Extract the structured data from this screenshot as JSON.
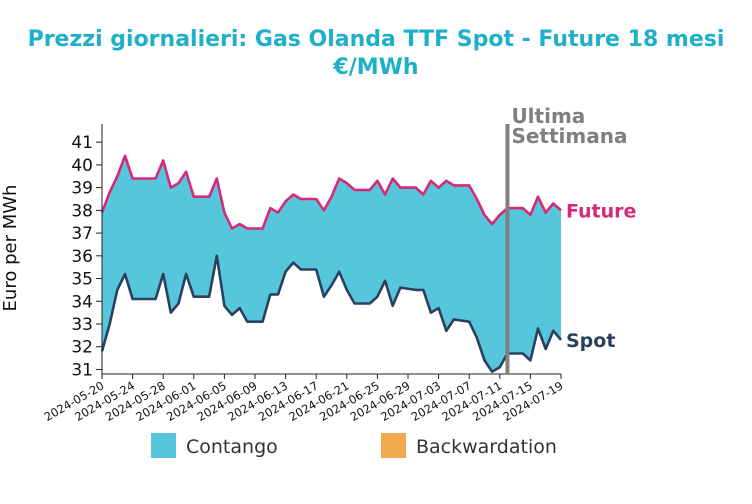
{
  "chart_data": {
    "type": "area",
    "title": "Prezzi giornalieri: Gas Olanda TTF Spot - Future 18 mesi",
    "subtitle": "€/MWh",
    "xlabel": "",
    "ylabel": "Euro per MWh",
    "ylim": [
      30.8,
      41.8
    ],
    "yticks": [
      31,
      32,
      33,
      34,
      35,
      36,
      37,
      38,
      39,
      40,
      41
    ],
    "xticks": [
      "2024-05-20",
      "2024-05-24",
      "2024-05-28",
      "2024-06-01",
      "2024-06-05",
      "2024-06-09",
      "2024-06-13",
      "2024-06-17",
      "2024-06-21",
      "2024-06-25",
      "2024-06-29",
      "2024-07-03",
      "2024-07-07",
      "2024-07-11",
      "2024-07-15",
      "2024-07-19"
    ],
    "grid": false,
    "series": [
      {
        "name": "Future",
        "color": "#d42a78",
        "values": [
          [
            "2024-05-20",
            37.9
          ],
          [
            "2024-05-21",
            38.8
          ],
          [
            "2024-05-22",
            39.5
          ],
          [
            "2024-05-23",
            40.4
          ],
          [
            "2024-05-24",
            39.4
          ],
          [
            "2024-05-27",
            39.4
          ],
          [
            "2024-05-28",
            40.2
          ],
          [
            "2024-05-29",
            39.0
          ],
          [
            "2024-05-30",
            39.2
          ],
          [
            "2024-05-31",
            39.7
          ],
          [
            "2024-06-01",
            38.6
          ],
          [
            "2024-06-03",
            38.6
          ],
          [
            "2024-06-04",
            39.4
          ],
          [
            "2024-06-05",
            37.9
          ],
          [
            "2024-06-06",
            37.2
          ],
          [
            "2024-06-07",
            37.4
          ],
          [
            "2024-06-08",
            37.2
          ],
          [
            "2024-06-10",
            37.2
          ],
          [
            "2024-06-11",
            38.1
          ],
          [
            "2024-06-12",
            37.9
          ],
          [
            "2024-06-13",
            38.4
          ],
          [
            "2024-06-14",
            38.7
          ],
          [
            "2024-06-15",
            38.5
          ],
          [
            "2024-06-17",
            38.5
          ],
          [
            "2024-06-18",
            38.0
          ],
          [
            "2024-06-19",
            38.6
          ],
          [
            "2024-06-20",
            39.4
          ],
          [
            "2024-06-21",
            39.2
          ],
          [
            "2024-06-22",
            38.9
          ],
          [
            "2024-06-24",
            38.9
          ],
          [
            "2024-06-25",
            39.3
          ],
          [
            "2024-06-26",
            38.7
          ],
          [
            "2024-06-27",
            39.4
          ],
          [
            "2024-06-28",
            39.0
          ],
          [
            "2024-06-30",
            39.0
          ],
          [
            "2024-07-01",
            38.7
          ],
          [
            "2024-07-02",
            39.3
          ],
          [
            "2024-07-03",
            39.0
          ],
          [
            "2024-07-04",
            39.3
          ],
          [
            "2024-07-05",
            39.1
          ],
          [
            "2024-07-07",
            39.1
          ],
          [
            "2024-07-08",
            38.5
          ],
          [
            "2024-07-09",
            37.8
          ],
          [
            "2024-07-10",
            37.4
          ],
          [
            "2024-07-11",
            37.8
          ],
          [
            "2024-07-12",
            38.1
          ],
          [
            "2024-07-14",
            38.1
          ],
          [
            "2024-07-15",
            37.8
          ],
          [
            "2024-07-16",
            38.6
          ],
          [
            "2024-07-17",
            37.9
          ],
          [
            "2024-07-18",
            38.3
          ],
          [
            "2024-07-19",
            38.0
          ]
        ]
      },
      {
        "name": "Spot",
        "color": "#2b3f5e",
        "values": [
          [
            "2024-05-20",
            31.8
          ],
          [
            "2024-05-21",
            33.0
          ],
          [
            "2024-05-22",
            34.5
          ],
          [
            "2024-05-23",
            35.2
          ],
          [
            "2024-05-24",
            34.1
          ],
          [
            "2024-05-27",
            34.1
          ],
          [
            "2024-05-28",
            35.2
          ],
          [
            "2024-05-29",
            33.5
          ],
          [
            "2024-05-30",
            33.9
          ],
          [
            "2024-05-31",
            35.2
          ],
          [
            "2024-06-01",
            34.2
          ],
          [
            "2024-06-03",
            34.2
          ],
          [
            "2024-06-04",
            36.0
          ],
          [
            "2024-06-05",
            33.8
          ],
          [
            "2024-06-06",
            33.4
          ],
          [
            "2024-06-07",
            33.7
          ],
          [
            "2024-06-08",
            33.1
          ],
          [
            "2024-06-10",
            33.1
          ],
          [
            "2024-06-11",
            34.3
          ],
          [
            "2024-06-12",
            34.3
          ],
          [
            "2024-06-13",
            35.3
          ],
          [
            "2024-06-14",
            35.7
          ],
          [
            "2024-06-15",
            35.4
          ],
          [
            "2024-06-17",
            35.4
          ],
          [
            "2024-06-18",
            34.2
          ],
          [
            "2024-06-19",
            34.7
          ],
          [
            "2024-06-20",
            35.3
          ],
          [
            "2024-06-21",
            34.5
          ],
          [
            "2024-06-22",
            33.9
          ],
          [
            "2024-06-24",
            33.9
          ],
          [
            "2024-06-25",
            34.2
          ],
          [
            "2024-06-26",
            34.9
          ],
          [
            "2024-06-27",
            33.8
          ],
          [
            "2024-06-28",
            34.6
          ],
          [
            "2024-06-30",
            34.5
          ],
          [
            "2024-07-01",
            34.5
          ],
          [
            "2024-07-02",
            33.5
          ],
          [
            "2024-07-03",
            33.7
          ],
          [
            "2024-07-04",
            32.7
          ],
          [
            "2024-07-05",
            33.2
          ],
          [
            "2024-07-07",
            33.1
          ],
          [
            "2024-07-08",
            32.4
          ],
          [
            "2024-07-09",
            31.4
          ],
          [
            "2024-07-10",
            30.9
          ],
          [
            "2024-07-11",
            31.1
          ],
          [
            "2024-07-12",
            31.7
          ],
          [
            "2024-07-14",
            31.7
          ],
          [
            "2024-07-15",
            31.4
          ],
          [
            "2024-07-16",
            32.8
          ],
          [
            "2024-07-17",
            31.9
          ],
          [
            "2024-07-18",
            32.7
          ],
          [
            "2024-07-19",
            32.3
          ]
        ]
      }
    ],
    "annotations": {
      "vline_date": "2024-07-12",
      "vline_label_1": "Ultima",
      "vline_label_2": "Settimana",
      "vline_color": "#7f7f7f",
      "fill_color": "#56c6dd"
    },
    "legend": {
      "placement": "bottom",
      "items": [
        {
          "label": "Contango",
          "color": "#56c6dd"
        },
        {
          "label": "Backwardation",
          "color": "#f0a94c"
        }
      ]
    }
  }
}
